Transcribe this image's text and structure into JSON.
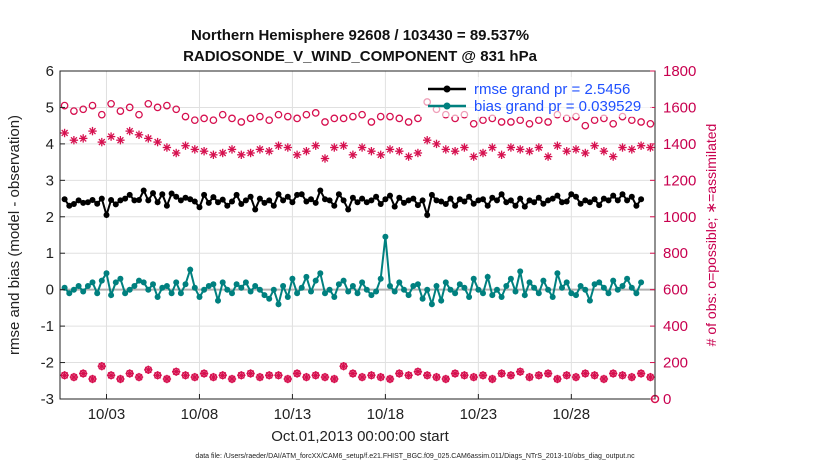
{
  "chart_data": {
    "type": "line",
    "title_line1": "Northern Hemisphere 92608 / 103430 = 89.537%",
    "title_line2": "RADIOSONDE_V_WIND_COMPONENT @ 831 hPa",
    "ylabel": "rmse and bias (model - observation)",
    "ylabel_right": "# of obs: o=possible; ∗=assimilated",
    "xlabel": "Oct.01,2013 00:00:00 start",
    "footer": "data file: /Users/raeder/DAI/ATM_forcXX/CAM6_setup/f.e21.FHIST_BGC.f09_025.CAM6assim.011/Diags_NTrS_2013-10/obs_diag_output.nc",
    "ylim": [
      -3,
      6
    ],
    "ylim_right": [
      0,
      1800
    ],
    "xlim": [
      0.5,
      32.5
    ],
    "yticks": [
      "-3",
      "-2",
      "-1",
      "0",
      "1",
      "2",
      "3",
      "4",
      "5",
      "6"
    ],
    "yticks_right": [
      "0",
      "200",
      "400",
      "600",
      "800",
      "1000",
      "1200",
      "1400",
      "1600",
      "1800"
    ],
    "xticks": [
      {
        "x": 3,
        "label": "10/03"
      },
      {
        "x": 8,
        "label": "10/08"
      },
      {
        "x": 13,
        "label": "10/13"
      },
      {
        "x": 18,
        "label": "10/18"
      },
      {
        "x": 23,
        "label": "10/23"
      },
      {
        "x": 28,
        "label": "10/28"
      }
    ],
    "legend": [
      {
        "name": "rmse",
        "label": "rmse grand pr = 2.5456"
      },
      {
        "name": "bias",
        "label": "bias grand pr = 0.039529"
      }
    ],
    "colors": {
      "rmse": "#000000",
      "bias": "#00807f",
      "obs": "#d6104f",
      "zero": "#b0b0b0",
      "grid": "#e0e0e0"
    },
    "series": [
      {
        "name": "rmse",
        "x_start": 0.75,
        "x_step": 0.25,
        "values": [
          2.48,
          2.3,
          2.35,
          2.45,
          2.38,
          2.4,
          2.46,
          2.36,
          2.5,
          2.05,
          2.46,
          2.34,
          2.45,
          2.5,
          2.6,
          2.45,
          2.46,
          2.72,
          2.45,
          2.65,
          2.4,
          2.62,
          2.3,
          2.64,
          2.55,
          2.45,
          2.52,
          2.48,
          2.42,
          2.26,
          2.6,
          2.38,
          2.54,
          2.4,
          2.47,
          2.3,
          2.42,
          2.6,
          2.35,
          2.45,
          2.55,
          2.2,
          2.5,
          2.38,
          2.45,
          2.3,
          2.62,
          2.45,
          2.55,
          2.4,
          2.6,
          2.62,
          2.42,
          2.48,
          2.38,
          2.72,
          2.48,
          2.45,
          2.3,
          2.62,
          2.45,
          2.2,
          2.52,
          2.4,
          2.5,
          2.4,
          2.45,
          2.55,
          2.35,
          2.48,
          2.58,
          2.28,
          2.52,
          2.38,
          2.45,
          2.5,
          2.32,
          2.45,
          2.05,
          2.6,
          2.45,
          2.42,
          2.35,
          2.5,
          2.3,
          2.48,
          2.42,
          2.55,
          2.36,
          2.45,
          2.48,
          2.3,
          2.52,
          2.45,
          2.62,
          2.4,
          2.45,
          2.3,
          2.5,
          2.28,
          2.45,
          2.4,
          2.52,
          2.36,
          2.45,
          2.5,
          2.58,
          2.4,
          2.42,
          2.62,
          2.55,
          2.36,
          2.45,
          2.4,
          2.48,
          2.32,
          2.5,
          2.45,
          2.58,
          2.45,
          2.62,
          2.45,
          2.55,
          2.3,
          2.48
        ]
      },
      {
        "name": "bias",
        "x_start": 0.75,
        "x_step": 0.25,
        "values": [
          0.05,
          -0.1,
          0.0,
          0.1,
          -0.05,
          0.1,
          0.2,
          -0.1,
          0.25,
          0.45,
          -0.15,
          0.2,
          0.3,
          -0.1,
          0.0,
          0.1,
          0.25,
          0.2,
          0.0,
          0.15,
          -0.2,
          0.05,
          0.1,
          -0.1,
          0.2,
          -0.1,
          0.15,
          0.55,
          0.05,
          -0.2,
          0.0,
          0.1,
          0.15,
          -0.3,
          0.2,
          0.0,
          -0.1,
          0.15,
          0.05,
          0.2,
          -0.05,
          0.1,
          0.0,
          -0.15,
          -0.25,
          0.0,
          -0.4,
          0.1,
          -0.2,
          0.3,
          -0.1,
          0.05,
          0.35,
          -0.05,
          0.25,
          0.45,
          -0.1,
          0.0,
          -0.2,
          0.15,
          0.25,
          -0.05,
          0.1,
          -0.1,
          0.2,
          0.0,
          -0.15,
          -0.05,
          0.3,
          1.45,
          0.1,
          -0.05,
          0.2,
          0.0,
          -0.15,
          0.1,
          0.15,
          -0.25,
          0.0,
          -0.4,
          0.1,
          -0.3,
          0.2,
          0.0,
          -0.1,
          0.15,
          0.05,
          -0.2,
          0.3,
          0.0,
          -0.1,
          0.35,
          -0.15,
          0.0,
          -0.2,
          0.1,
          0.3,
          -0.05,
          0.5,
          -0.15,
          0.2,
          0.05,
          -0.1,
          0.25,
          0.0,
          -0.2,
          0.45,
          0.05,
          0.2,
          -0.1,
          -0.15,
          0.1,
          0.0,
          -0.3,
          0.15,
          0.2,
          0.05,
          -0.1,
          0.25,
          0.0,
          0.1,
          0.3,
          0.05,
          -0.1,
          0.2
        ]
      },
      {
        "name": "obs_possible",
        "marker": "circle",
        "x_start": 0.75,
        "x_step": 0.5,
        "values": [
          1610,
          1580,
          1590,
          1610,
          1560,
          1620,
          1580,
          1600,
          1560,
          1620,
          1600,
          1610,
          1590,
          1550,
          1530,
          1540,
          1530,
          1560,
          1540,
          1520,
          1540,
          1550,
          1530,
          1560,
          1550,
          1540,
          1560,
          1570,
          1520,
          1540,
          1540,
          1550,
          1560,
          1520,
          1550,
          1550,
          1540,
          1520,
          1540,
          1630,
          1590,
          1560,
          1540,
          1560,
          1510,
          1530,
          1540,
          1520,
          1520,
          1530,
          1510,
          1530,
          1520,
          1560,
          1540,
          1550,
          1500,
          1530,
          1540,
          1510,
          1550,
          1530,
          1520,
          1510
        ]
      },
      {
        "name": "obs_assimilated",
        "marker": "asterisk",
        "x_start": 0.75,
        "x_step": 0.5,
        "values": [
          1460,
          1420,
          1430,
          1470,
          1410,
          1440,
          1420,
          1470,
          1450,
          1430,
          1410,
          1380,
          1350,
          1390,
          1370,
          1360,
          1340,
          1350,
          1370,
          1340,
          1350,
          1370,
          1360,
          1390,
          1380,
          1340,
          1360,
          1390,
          1320,
          1380,
          1390,
          1340,
          1380,
          1360,
          1340,
          1370,
          1360,
          1330,
          1350,
          1420,
          1400,
          1370,
          1360,
          1380,
          1330,
          1350,
          1380,
          1340,
          1380,
          1370,
          1360,
          1380,
          1330,
          1390,
          1360,
          1370,
          1350,
          1390,
          1360,
          1330,
          1380,
          1370,
          1390,
          1380
        ]
      },
      {
        "name": "obs_low",
        "marker": "both",
        "x_start": 0.75,
        "x_step": 0.5,
        "values": [
          130,
          120,
          140,
          110,
          180,
          130,
          110,
          140,
          120,
          160,
          130,
          110,
          150,
          130,
          120,
          140,
          120,
          130,
          110,
          130,
          140,
          120,
          130,
          130,
          110,
          140,
          120,
          130,
          120,
          110,
          180,
          140,
          120,
          130,
          120,
          110,
          140,
          130,
          150,
          130,
          120,
          110,
          140,
          130,
          120,
          130,
          110,
          140,
          130,
          150,
          120,
          130,
          140,
          110,
          130,
          120,
          140,
          130,
          110,
          140,
          130,
          120,
          140,
          120
        ]
      }
    ]
  }
}
